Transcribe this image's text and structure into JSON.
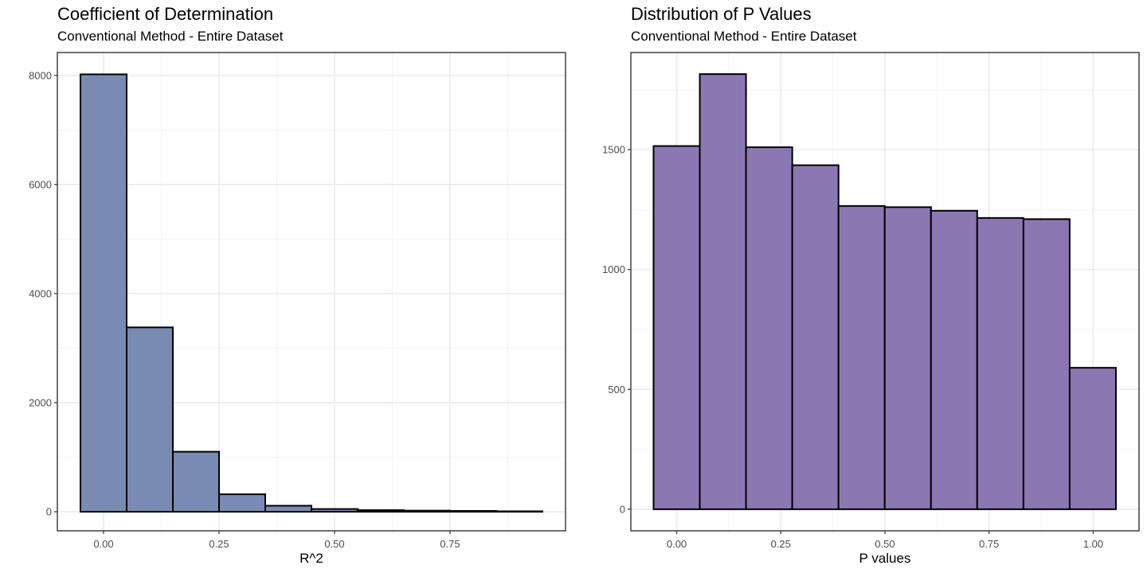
{
  "charts": [
    {
      "title": "Coefficient of Determination",
      "subtitle": "Conventional Method - Entire Dataset",
      "xlabel": "R^2"
    },
    {
      "title": "Distribution of P Values",
      "subtitle": "Conventional Method - Entire Dataset",
      "xlabel": "P values"
    }
  ],
  "chart_data": [
    {
      "type": "bar",
      "title": "Coefficient of Determination",
      "subtitle": "Conventional Method - Entire Dataset",
      "xlabel": "R^2",
      "ylabel": "",
      "fill_color": "#7a8bb3",
      "bin_width": 0.1,
      "bins": [
        {
          "x0": -0.05,
          "x1": 0.05,
          "count": 8020
        },
        {
          "x0": 0.05,
          "x1": 0.15,
          "count": 3380
        },
        {
          "x0": 0.15,
          "x1": 0.25,
          "count": 1100
        },
        {
          "x0": 0.25,
          "x1": 0.35,
          "count": 320
        },
        {
          "x0": 0.35,
          "x1": 0.45,
          "count": 110
        },
        {
          "x0": 0.45,
          "x1": 0.55,
          "count": 50
        },
        {
          "x0": 0.55,
          "x1": 0.65,
          "count": 30
        },
        {
          "x0": 0.65,
          "x1": 0.75,
          "count": 20
        },
        {
          "x0": 0.75,
          "x1": 0.85,
          "count": 15
        },
        {
          "x0": 0.85,
          "x1": 0.95,
          "count": 8
        }
      ],
      "xlim": [
        -0.1,
        1.0
      ],
      "ylim": [
        -350,
        8420
      ],
      "xticks": [
        0.0,
        0.25,
        0.5,
        0.75
      ],
      "xtick_labels": [
        "0.00",
        "0.25",
        "0.50",
        "0.75"
      ],
      "yticks": [
        0,
        2000,
        4000,
        6000,
        8000
      ],
      "ytick_labels": [
        "0",
        "2000",
        "4000",
        "6000",
        "8000"
      ],
      "grid": true,
      "legend": "none"
    },
    {
      "type": "bar",
      "title": "Distribution of P Values",
      "subtitle": "Conventional Method - Entire Dataset",
      "xlabel": "P values",
      "ylabel": "",
      "fill_color": "#8b78b2",
      "bin_width": 0.111,
      "bins": [
        {
          "x0": -0.0555,
          "x1": 0.0555,
          "count": 1515
        },
        {
          "x0": 0.0555,
          "x1": 0.1665,
          "count": 1815
        },
        {
          "x0": 0.1665,
          "x1": 0.2775,
          "count": 1510
        },
        {
          "x0": 0.2775,
          "x1": 0.3885,
          "count": 1435
        },
        {
          "x0": 0.3885,
          "x1": 0.4995,
          "count": 1265
        },
        {
          "x0": 0.4995,
          "x1": 0.6105,
          "count": 1260
        },
        {
          "x0": 0.6105,
          "x1": 0.7215,
          "count": 1245
        },
        {
          "x0": 0.7215,
          "x1": 0.8325,
          "count": 1215
        },
        {
          "x0": 0.8325,
          "x1": 0.9435,
          "count": 1210
        },
        {
          "x0": 0.9435,
          "x1": 1.0545,
          "count": 590
        }
      ],
      "xlim": [
        -0.11,
        1.11
      ],
      "ylim": [
        -90,
        1905
      ],
      "xticks": [
        0.0,
        0.25,
        0.5,
        0.75,
        1.0
      ],
      "xtick_labels": [
        "0.00",
        "0.25",
        "0.50",
        "0.75",
        "1.00"
      ],
      "yticks": [
        0,
        500,
        1000,
        1500
      ],
      "ytick_labels": [
        "0",
        "500",
        "1000",
        "1500"
      ],
      "grid": true,
      "legend": "none"
    }
  ]
}
